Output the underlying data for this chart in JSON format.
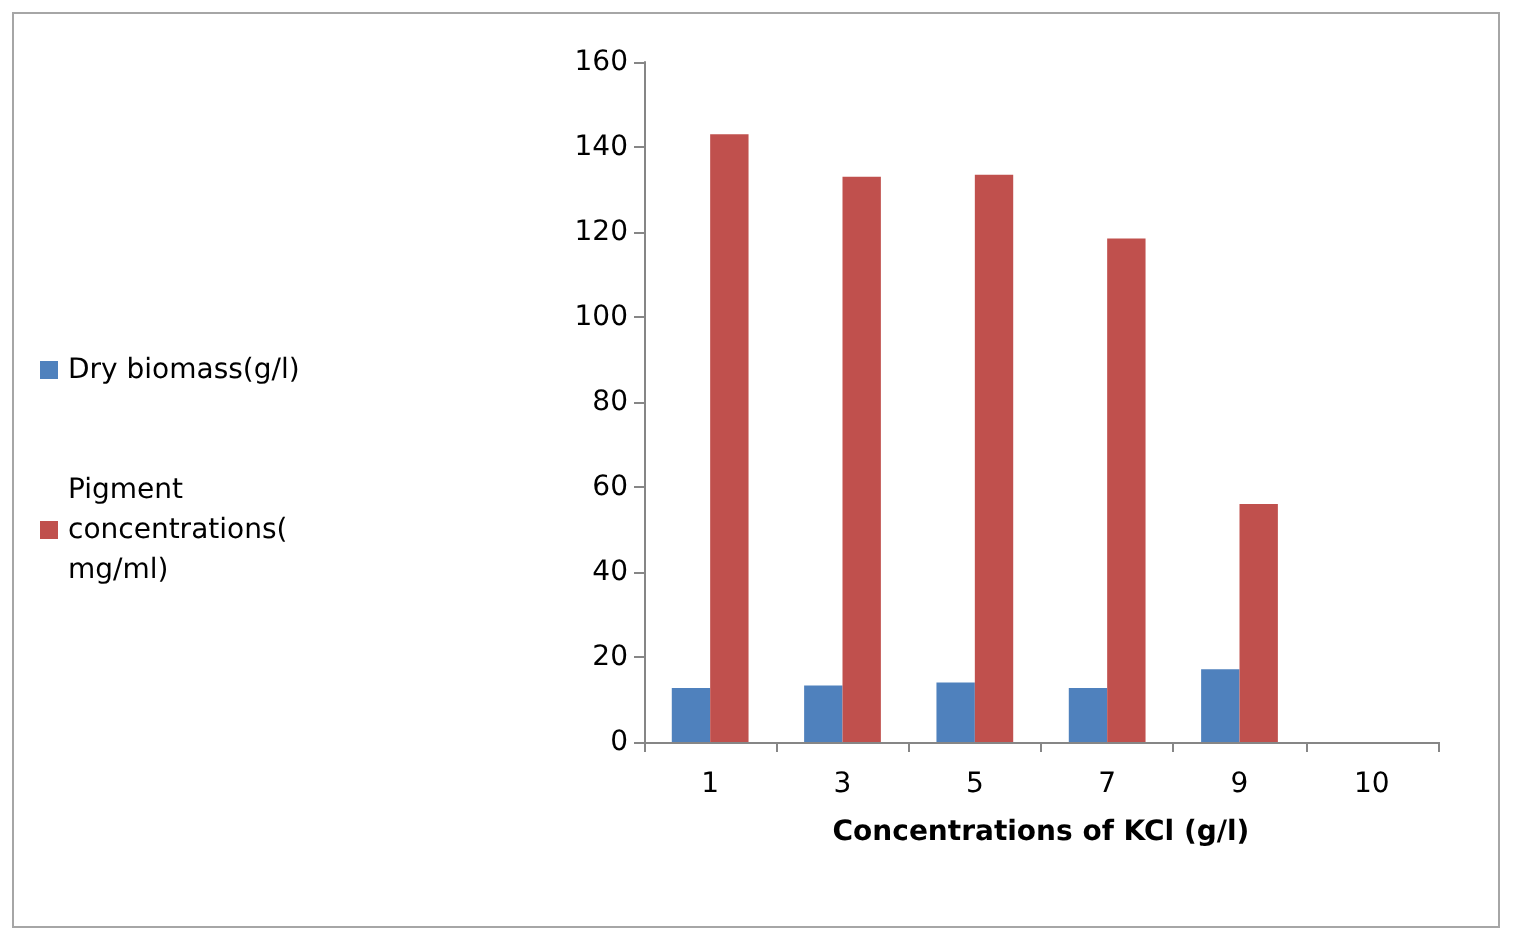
{
  "chart_data": {
    "type": "bar",
    "xlabel": "Concentrations of KCl (g/l)",
    "categories": [
      "1",
      "3",
      "5",
      "7",
      "9",
      "10"
    ],
    "series": [
      {
        "name": "Dry biomass(g/l)",
        "color": "#4f81bd",
        "values": [
          12.7,
          13.3,
          14,
          12.7,
          17.1,
          null
        ]
      },
      {
        "name": "Pigment concentrations(mg/ml)",
        "color": "#c0504d",
        "values": [
          143,
          133,
          133.5,
          118.5,
          56,
          null
        ]
      }
    ],
    "ylim": [
      0,
      160
    ],
    "yticks": [
      0,
      20,
      40,
      60,
      80,
      100,
      120,
      140,
      160
    ],
    "grid": false,
    "legend": "left"
  }
}
